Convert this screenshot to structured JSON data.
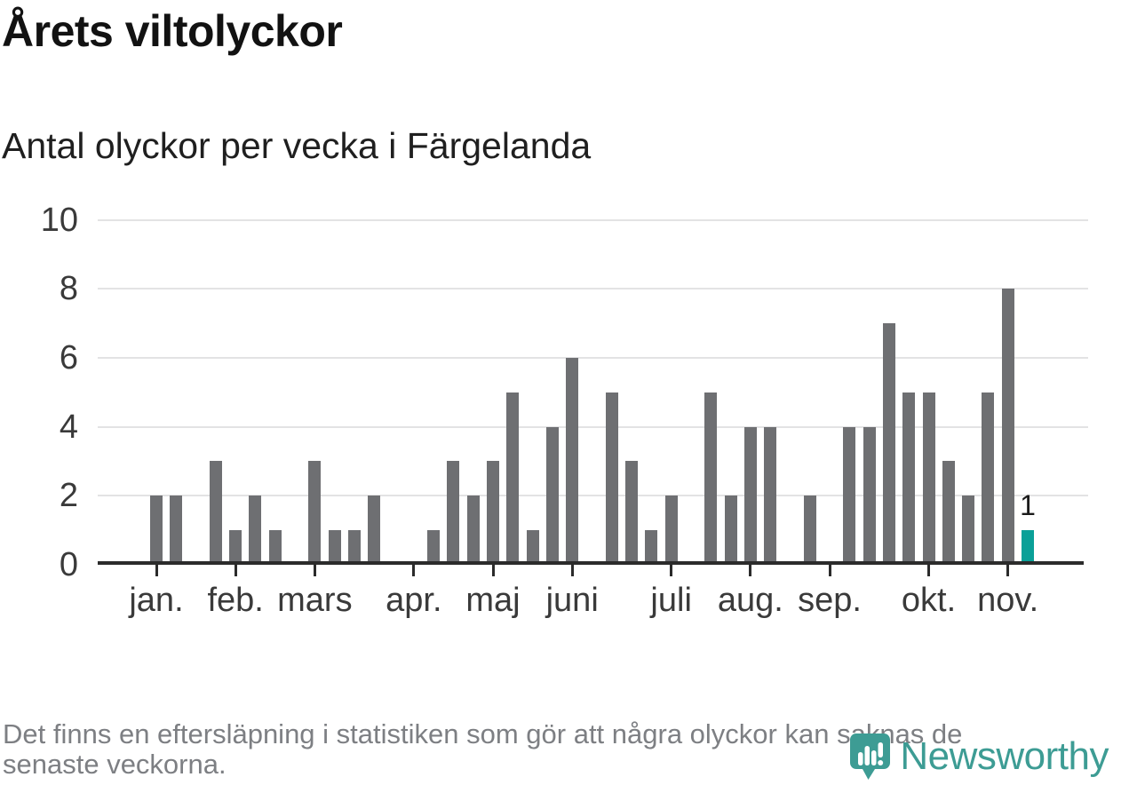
{
  "header": {
    "title": "Årets viltolyckor",
    "subtitle": "Antal olyckor per vecka i Färgelanda"
  },
  "footer": {
    "note_line1": "Det finns en eftersläpning i statistiken som gör att några olyckor kan saknas de",
    "note_line2": "senaste veckorna.",
    "brand": "Newsworthy"
  },
  "chart_data": {
    "type": "bar",
    "title": "Årets viltolyckor",
    "subtitle": "Antal olyckor per vecka i Färgelanda",
    "x_unit": "vecka (week of year, weeks 1-45)",
    "values": [
      2,
      2,
      0,
      3,
      1,
      2,
      1,
      0,
      3,
      1,
      1,
      2,
      0,
      0,
      1,
      3,
      2,
      3,
      5,
      1,
      4,
      6,
      0,
      5,
      3,
      1,
      2,
      0,
      5,
      2,
      4,
      4,
      0,
      2,
      0,
      4,
      4,
      7,
      5,
      5,
      3,
      2,
      5,
      8,
      1
    ],
    "highlight_last_bar": true,
    "last_bar_label": "1",
    "month_ticks": [
      {
        "label": "jan.",
        "week": 1
      },
      {
        "label": "feb.",
        "week": 5
      },
      {
        "label": "mars",
        "week": 9
      },
      {
        "label": "apr.",
        "week": 14
      },
      {
        "label": "maj",
        "week": 18
      },
      {
        "label": "juni",
        "week": 22
      },
      {
        "label": "juli",
        "week": 27
      },
      {
        "label": "aug.",
        "week": 31
      },
      {
        "label": "sep.",
        "week": 35
      },
      {
        "label": "okt.",
        "week": 40
      },
      {
        "label": "nov.",
        "week": 44
      }
    ],
    "ylim": [
      0,
      10
    ],
    "yticks": [
      0,
      2,
      4,
      6,
      8,
      10
    ],
    "grid": true,
    "legend": false,
    "bar_color": "#6e6f72",
    "highlight_color": "#0aa098",
    "gridline_color": "#e3e3e4",
    "axis_color": "#2b2b2b",
    "brand_color": "#3d9c94"
  }
}
